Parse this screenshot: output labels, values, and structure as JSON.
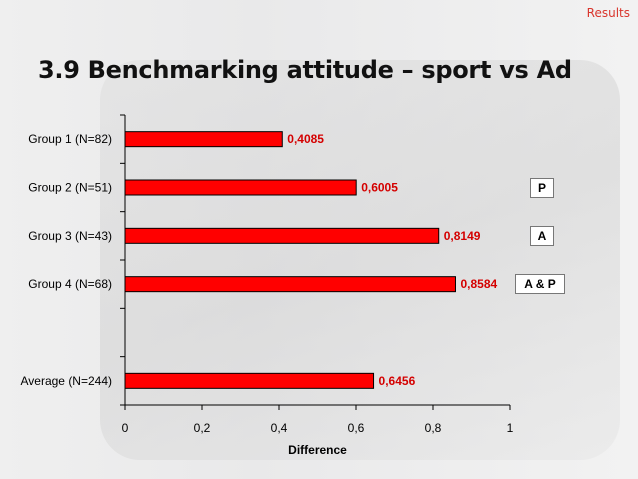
{
  "header": {
    "section_label": "Results",
    "title": "3.9 Benchmarking attitude – sport vs Ad"
  },
  "chart_data": {
    "type": "bar",
    "orientation": "horizontal",
    "categories": [
      "Group 1 (N=82)",
      "Group 2 (N=51)",
      "Group 3 (N=43)",
      "Group 4 (N=68)",
      "",
      "Average (N=244)"
    ],
    "values": [
      0.4085,
      0.6005,
      0.8149,
      0.8584,
      null,
      0.6456
    ],
    "value_labels": [
      "0,4085",
      "0,6005",
      "0,8149",
      "0,8584",
      "",
      "0,6456"
    ],
    "xlabel": "Difference",
    "ylabel": "",
    "xlim": [
      0,
      1
    ],
    "ticks": [
      0,
      0.2,
      0.4,
      0.6,
      0.8,
      1
    ],
    "tick_labels": [
      "0",
      "0,2",
      "0,4",
      "0,6",
      "0,8",
      "1"
    ],
    "bar_color": "#ff0000",
    "value_label_color": "#d40000",
    "grid": false,
    "legend": "none",
    "annotations": [
      {
        "category_index": 1,
        "text": "P"
      },
      {
        "category_index": 2,
        "text": "A"
      },
      {
        "category_index": 3,
        "text": "A & P"
      }
    ]
  }
}
